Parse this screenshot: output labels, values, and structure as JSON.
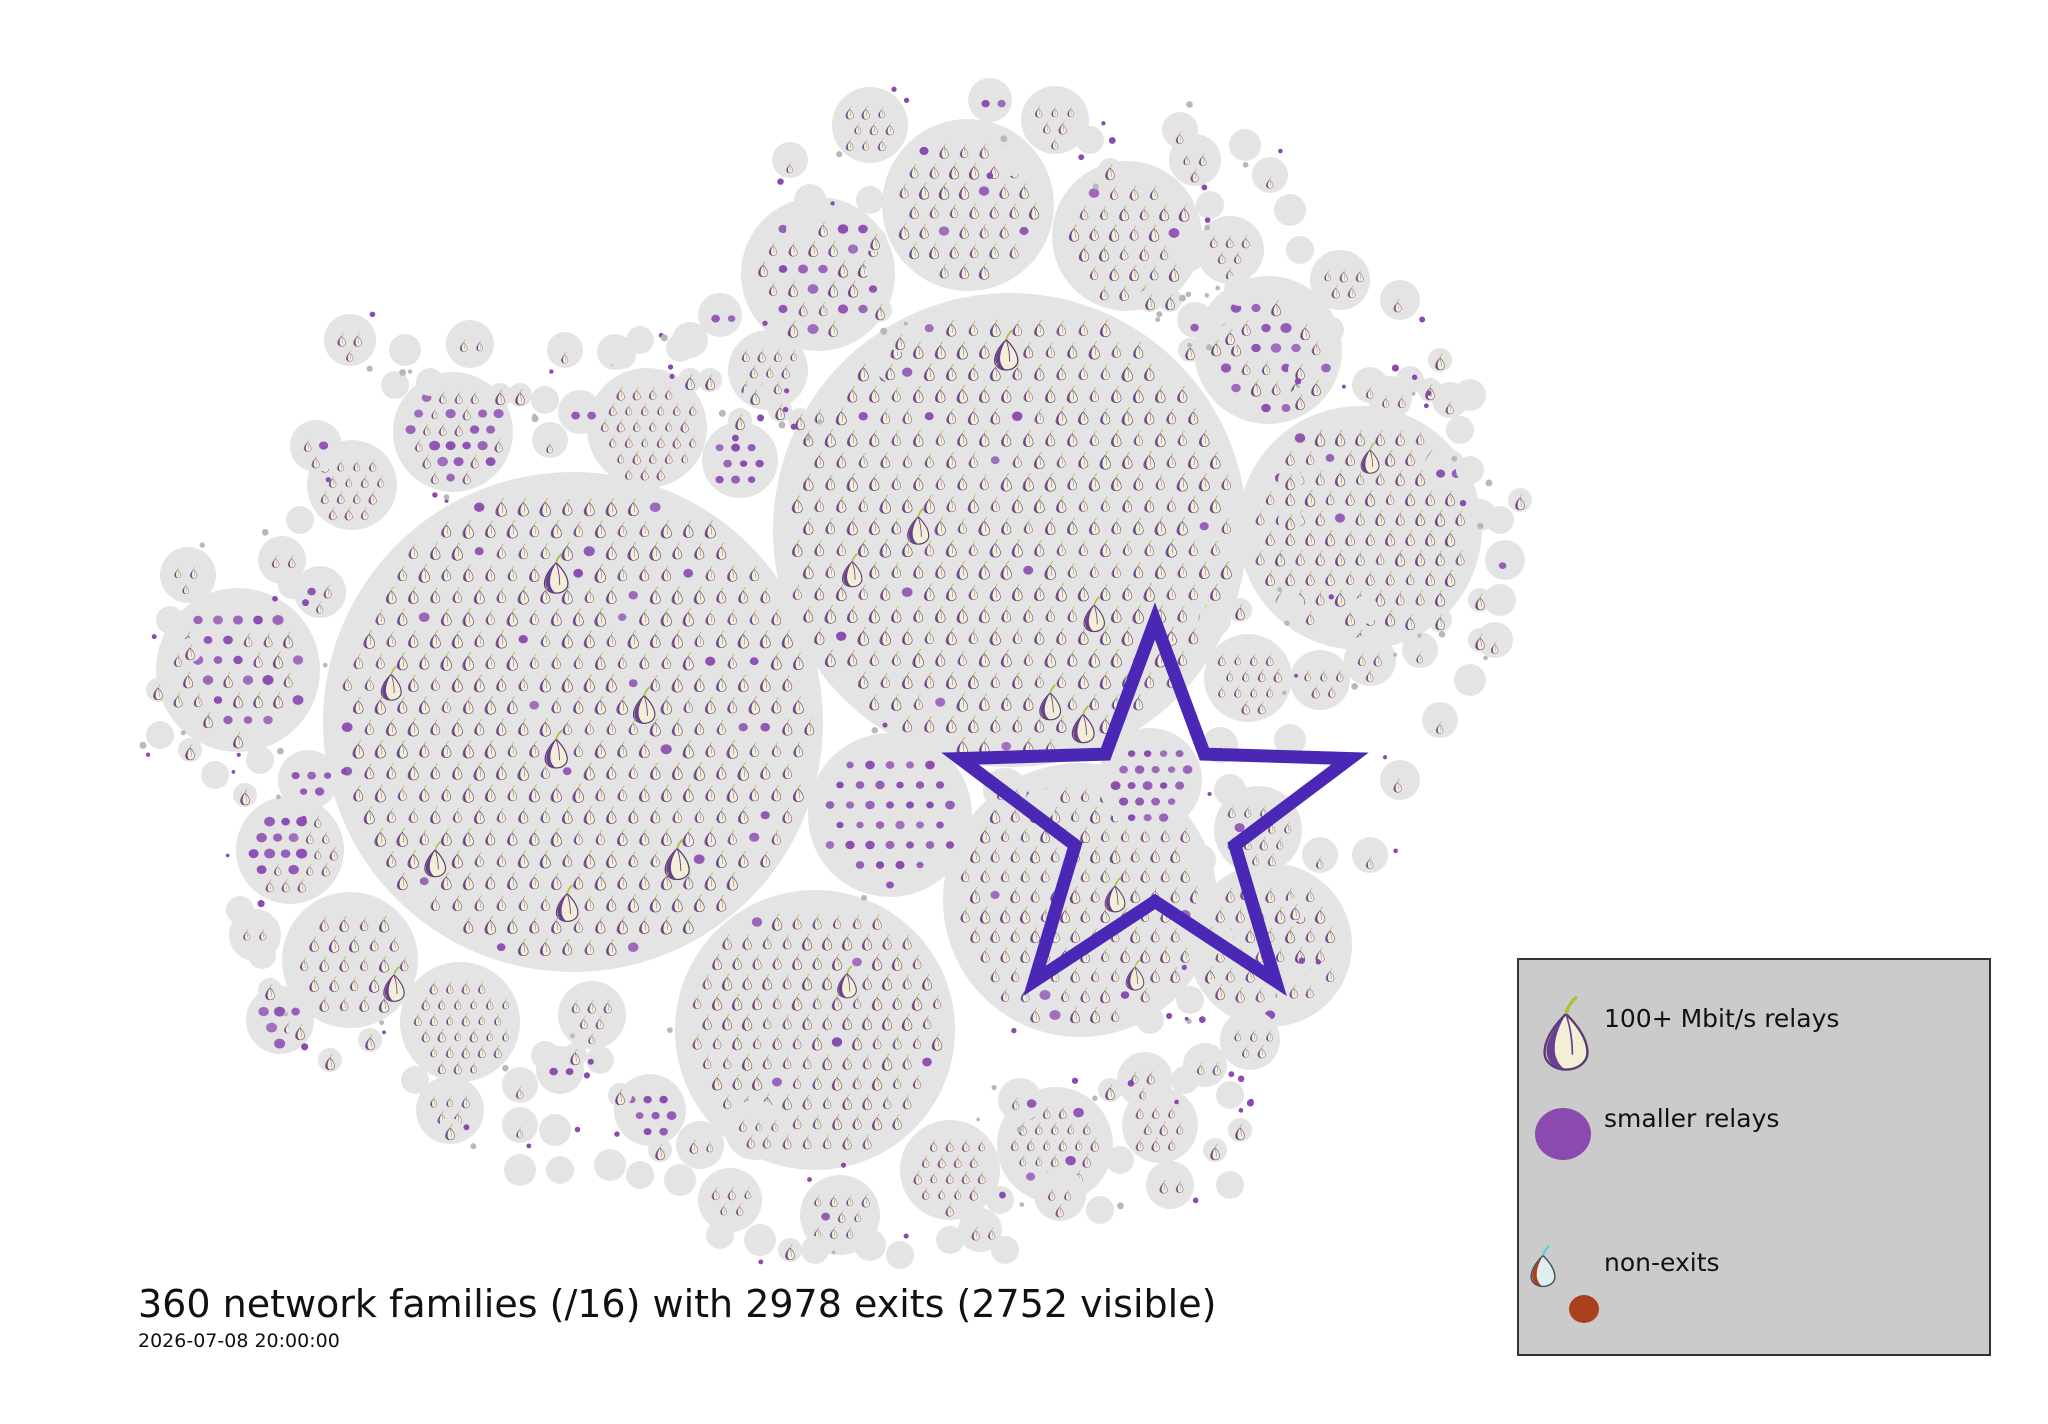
{
  "caption": {
    "title": "360 network families (/16) with 2978 exits (2752 visible)",
    "timestamp": "2026-07-08 20:00:00"
  },
  "legend": {
    "items": [
      {
        "label": "100+ Mbit/s relays",
        "icon": "large-onion-icon"
      },
      {
        "label": "smaller relays",
        "icon": "purple-dot-icon"
      },
      {
        "label": "non-exits",
        "icon": "small-onion-and-orange-dot-icon"
      }
    ]
  },
  "colors": {
    "cluster_bg": "#e4e4e4",
    "onion_purple": "#6b3f8f",
    "onion_cream": "#f3efd6",
    "relay_dot": "#8a4ab0",
    "leaf_green": "#a8c23a",
    "star_outline": "#4a27b5",
    "non_exit_dot": "#a9411f",
    "legend_bg": "#cbcbcb"
  },
  "highlight": {
    "shape": "star",
    "icon": "star-outline-icon"
  }
}
